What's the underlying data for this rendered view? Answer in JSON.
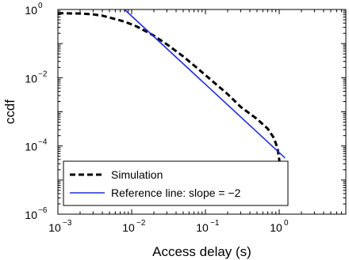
{
  "chart_data": {
    "type": "line",
    "title": "",
    "xlabel": "Access delay (s)",
    "ylabel": "ccdf",
    "x_scale": "log",
    "y_scale": "log",
    "xlim": [
      0.001,
      8
    ],
    "ylim": [
      1e-06,
      1
    ],
    "grid": false,
    "legend_position": "bottom-left",
    "x_ticks": [
      {
        "value": 0.001,
        "base": "10",
        "exp": "−3"
      },
      {
        "value": 0.01,
        "base": "10",
        "exp": "−2"
      },
      {
        "value": 0.1,
        "base": "10",
        "exp": "−1"
      },
      {
        "value": 1,
        "base": "10",
        "exp": "0"
      }
    ],
    "y_ticks": [
      {
        "value": 1e-06,
        "base": "10",
        "exp": "−6"
      },
      {
        "value": 0.0001,
        "base": "10",
        "exp": "−4"
      },
      {
        "value": 0.01,
        "base": "10",
        "exp": "−2"
      },
      {
        "value": 1,
        "base": "10",
        "exp": "0"
      }
    ],
    "series": [
      {
        "name": "Simulation",
        "color": "#000000",
        "style": "dashed",
        "x": [
          0.001,
          0.002,
          0.003,
          0.004,
          0.005,
          0.007,
          0.009,
          0.012,
          0.015,
          0.02,
          0.03,
          0.05,
          0.08,
          0.12,
          0.2,
          0.3,
          0.5,
          0.7,
          0.85,
          0.95,
          1.0,
          1.05,
          1.12,
          1.2
        ],
        "y": [
          0.78,
          0.76,
          0.72,
          0.66,
          0.58,
          0.48,
          0.4,
          0.31,
          0.24,
          0.17,
          0.095,
          0.042,
          0.018,
          0.0085,
          0.0033,
          0.0014,
          0.00062,
          0.00032,
          0.00017,
          8.5e-05,
          4e-05,
          1.8e-05,
          9e-06,
          5.5e-06
        ]
      },
      {
        "name": "Reference line: slope = −2",
        "color": "#1f2fd8",
        "style": "solid",
        "x": [
          0.008,
          1.2
        ],
        "y": [
          1.0,
          4.44e-05
        ]
      }
    ]
  }
}
